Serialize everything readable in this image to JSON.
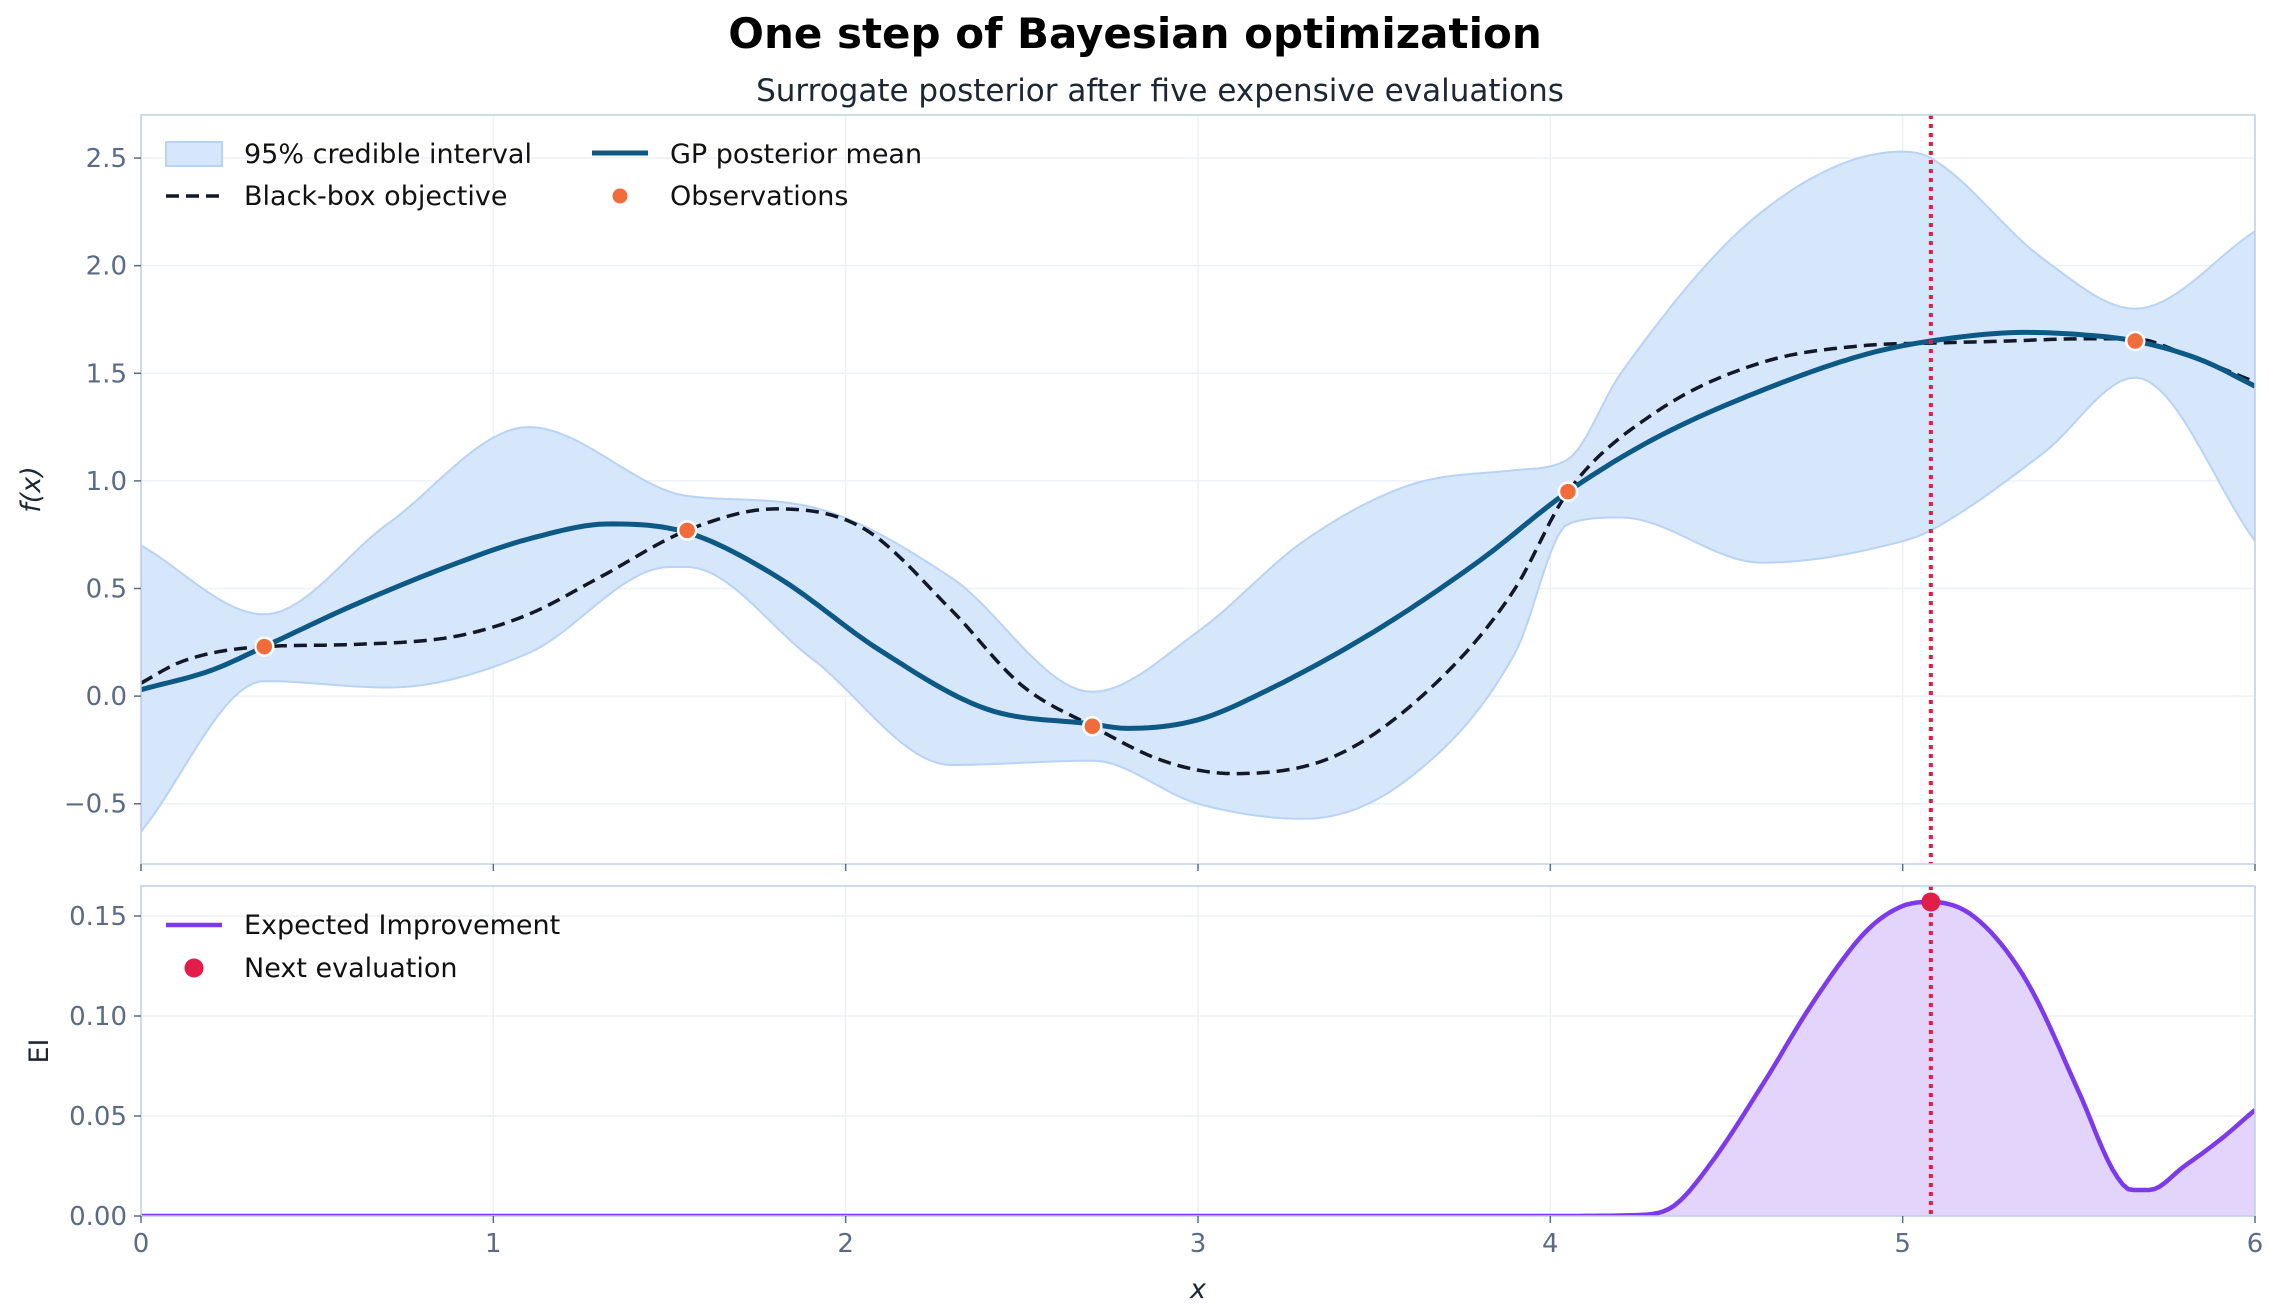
{
  "chart_data": [
    {
      "type": "line",
      "title": "One step of Bayesian optimization",
      "subtitle": "Surrogate posterior after five expensive evaluations",
      "xlabel": "",
      "ylabel": "f(x)",
      "xlim": [
        0,
        6
      ],
      "ylim": [
        -0.78,
        2.7
      ],
      "xticks": [
        "0",
        "1",
        "2",
        "3",
        "4",
        "5",
        "6"
      ],
      "yticks": [
        -0.5,
        0.0,
        0.5,
        1.0,
        1.5,
        2.0,
        2.5
      ],
      "ytick_labels": [
        "−0.5",
        "0.0",
        "0.5",
        "1.0",
        "1.5",
        "2.0",
        "2.5"
      ],
      "grid": true,
      "legend_position": "top-left",
      "legend": [
        "95% credible interval",
        "Black-box objective",
        "GP posterior mean",
        "Observations"
      ],
      "series": [
        {
          "name": "95% credible interval",
          "x": [
            0,
            0.35,
            0.7,
            1.1,
            1.5,
            1.55,
            1.9,
            2.3,
            2.7,
            3.0,
            3.3,
            3.6,
            3.9,
            4.05,
            4.2,
            4.6,
            5.0,
            5.08,
            5.4,
            5.66,
            6.0
          ],
          "lower": [
            -0.63,
            0.07,
            0.04,
            0.2,
            0.6,
            0.6,
            0.18,
            -0.32,
            -0.3,
            -0.5,
            -0.57,
            -0.38,
            0.2,
            0.8,
            0.83,
            0.62,
            0.72,
            0.77,
            1.13,
            1.48,
            0.72
          ],
          "upper": [
            0.7,
            0.38,
            0.8,
            1.25,
            0.95,
            0.93,
            0.88,
            0.55,
            0.02,
            0.3,
            0.72,
            0.98,
            1.05,
            1.1,
            1.5,
            2.25,
            2.53,
            2.5,
            2.03,
            1.8,
            2.16
          ]
        },
        {
          "name": "Black-box objective",
          "style": "dashed",
          "x": [
            0,
            0.1,
            0.2,
            0.35,
            0.6,
            0.9,
            1.1,
            1.3,
            1.55,
            1.8,
            2.05,
            2.3,
            2.5,
            2.7,
            2.9,
            3.1,
            3.4,
            3.7,
            3.9,
            4.05,
            4.3,
            4.6,
            4.9,
            5.08,
            5.3,
            5.5,
            5.66,
            5.8,
            6.0
          ],
          "y": [
            0.06,
            0.15,
            0.2,
            0.23,
            0.24,
            0.28,
            0.38,
            0.55,
            0.77,
            0.87,
            0.78,
            0.4,
            0.05,
            -0.14,
            -0.3,
            -0.36,
            -0.27,
            0.1,
            0.5,
            0.95,
            1.32,
            1.55,
            1.63,
            1.64,
            1.65,
            1.66,
            1.66,
            1.59,
            1.46
          ]
        },
        {
          "name": "GP posterior mean",
          "x": [
            0,
            0.2,
            0.35,
            0.6,
            0.9,
            1.1,
            1.33,
            1.55,
            1.8,
            2.1,
            2.4,
            2.7,
            2.8,
            3.0,
            3.2,
            3.5,
            3.8,
            4.05,
            4.3,
            4.6,
            4.9,
            5.08,
            5.35,
            5.5,
            5.66,
            5.85,
            6.0
          ],
          "y": [
            0.03,
            0.12,
            0.23,
            0.42,
            0.62,
            0.73,
            0.8,
            0.76,
            0.56,
            0.21,
            -0.06,
            -0.13,
            -0.15,
            -0.11,
            0.03,
            0.3,
            0.63,
            0.95,
            1.2,
            1.42,
            1.59,
            1.65,
            1.69,
            1.68,
            1.65,
            1.56,
            1.44
          ]
        },
        {
          "name": "Observations",
          "type": "scatter",
          "x": [
            0.35,
            1.55,
            2.7,
            4.05,
            5.66
          ],
          "y": [
            0.23,
            0.77,
            -0.14,
            0.95,
            1.65
          ]
        }
      ],
      "annotations": [
        {
          "type": "vline",
          "x": 5.08,
          "style": "dotted",
          "color": "#e11d48"
        }
      ]
    },
    {
      "type": "area",
      "xlabel": "x",
      "ylabel": "EI",
      "xlim": [
        0,
        6
      ],
      "ylim": [
        0,
        0.165
      ],
      "xticks": [
        "0",
        "1",
        "2",
        "3",
        "4",
        "5",
        "6"
      ],
      "yticks": [
        0.0,
        0.05,
        0.1,
        0.15
      ],
      "ytick_labels": [
        "0.00",
        "0.05",
        "0.10",
        "0.15"
      ],
      "grid": true,
      "legend_position": "top-left",
      "legend": [
        "Expected Improvement",
        "Next evaluation"
      ],
      "series": [
        {
          "name": "Expected Improvement",
          "x": [
            0,
            4.0,
            4.25,
            4.35,
            4.45,
            4.6,
            4.75,
            4.9,
            5.0,
            5.08,
            5.2,
            5.35,
            5.5,
            5.6,
            5.65,
            5.7,
            5.8,
            5.9,
            6.0
          ],
          "y": [
            0,
            0,
            0.0005,
            0.005,
            0.025,
            0.065,
            0.108,
            0.143,
            0.155,
            0.157,
            0.15,
            0.118,
            0.062,
            0.022,
            0.013,
            0.013,
            0.025,
            0.038,
            0.053
          ]
        },
        {
          "name": "Next evaluation",
          "type": "scatter",
          "x": [
            5.08
          ],
          "y": [
            0.157
          ]
        }
      ],
      "annotations": [
        {
          "type": "vline",
          "x": 5.08,
          "style": "dotted",
          "color": "#e11d48"
        }
      ]
    }
  ],
  "colors": {
    "band_fill": "#d6e6fb",
    "band_edge": "#b9d3f5",
    "objective": "#111827",
    "mean": "#0c5985",
    "observation": "#f26b3a",
    "ei_line": "#7c3aed",
    "ei_fill": "#e2d4fb",
    "next_eval": "#e11d48",
    "spine": "#bfd0e6",
    "grid": "#edf1f6"
  }
}
